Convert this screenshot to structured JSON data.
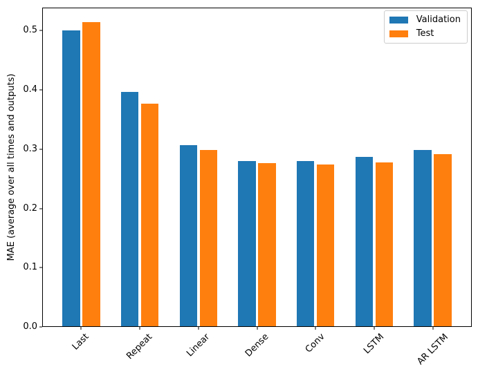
{
  "chart_data": {
    "type": "bar",
    "title": "",
    "xlabel": "",
    "ylabel": "MAE (average over all times and outputs)",
    "categories": [
      "Last",
      "Repeat",
      "Linear",
      "Dense",
      "Conv",
      "LSTM",
      "AR LSTM"
    ],
    "series": [
      {
        "name": "Validation",
        "color": "#1f77b4",
        "values": [
          0.501,
          0.396,
          0.306,
          0.279,
          0.279,
          0.286,
          0.298
        ]
      },
      {
        "name": "Test",
        "color": "#ff7f0e",
        "values": [
          0.514,
          0.377,
          0.298,
          0.276,
          0.274,
          0.277,
          0.291
        ]
      }
    ],
    "yticks": [
      "0.0",
      "0.1",
      "0.2",
      "0.3",
      "0.4",
      "0.5"
    ],
    "ylim": [
      0,
      0.539
    ],
    "grid": false,
    "legend_position": "upper right",
    "bar_group_offset": 0.17,
    "bar_width_units": 0.3
  }
}
